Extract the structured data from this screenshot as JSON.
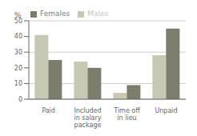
{
  "chart_data": {
    "type": "bar",
    "categories": [
      "Paid",
      "Included\nin salary\npackage",
      "Time off\nin lieu",
      "Unpaid"
    ],
    "series": [
      {
        "name": "Males",
        "color": "#c8c8b4",
        "values": [
          41,
          24,
          4,
          28
        ]
      },
      {
        "name": "Females",
        "color": "#7d7d6e",
        "values": [
          25,
          20,
          9,
          45
        ]
      }
    ],
    "ylabel": "%",
    "ylim": [
      0,
      50
    ],
    "yticks": [
      0,
      10,
      20,
      30,
      40,
      50
    ],
    "grid": true,
    "legend": "upper left"
  }
}
